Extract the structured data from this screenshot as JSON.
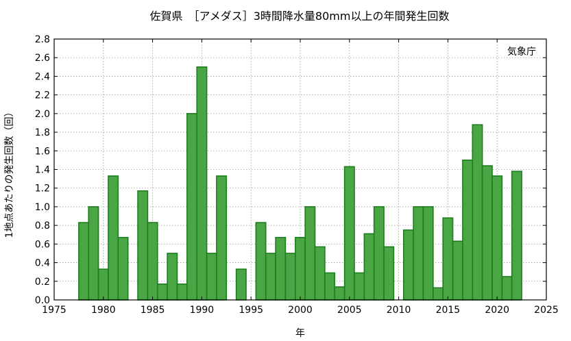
{
  "chart_data": {
    "type": "bar",
    "title": "佐賀県　［アメダス］3時間降水量80mm以上の年間発生回数",
    "xlabel": "年",
    "ylabel": "1地点あたりの発生回数（回）",
    "source": "気象庁",
    "xlim": [
      1975,
      2025
    ],
    "ylim": [
      0.0,
      2.8
    ],
    "xticks": [
      1975,
      1980,
      1985,
      1990,
      1995,
      2000,
      2005,
      2010,
      2015,
      2020,
      2025
    ],
    "yticks": [
      "0.0",
      "0.2",
      "0.4",
      "0.6",
      "0.8",
      "1.0",
      "1.2",
      "1.4",
      "1.6",
      "1.8",
      "2.0",
      "2.2",
      "2.4",
      "2.6",
      "2.8"
    ],
    "grid": true,
    "bar_color": "#4aa544",
    "bar_edge_color": "#1e7d1e",
    "x": [
      1976,
      1977,
      1978,
      1979,
      1980,
      1981,
      1982,
      1983,
      1984,
      1985,
      1986,
      1987,
      1988,
      1989,
      1990,
      1991,
      1992,
      1993,
      1994,
      1995,
      1996,
      1997,
      1998,
      1999,
      2000,
      2001,
      2002,
      2003,
      2004,
      2005,
      2006,
      2007,
      2008,
      2009,
      2010,
      2011,
      2012,
      2013,
      2014,
      2015,
      2016,
      2017,
      2018,
      2019,
      2020,
      2021,
      2022,
      2023
    ],
    "values": [
      0,
      0,
      0.83,
      1.0,
      0.33,
      1.33,
      0.67,
      0,
      1.17,
      0.83,
      0.17,
      0.5,
      0.17,
      2.0,
      2.5,
      0.5,
      1.33,
      0,
      0.33,
      0,
      0.83,
      0.5,
      0.67,
      0.5,
      0.67,
      1.0,
      0.57,
      0.29,
      0.14,
      1.43,
      0.29,
      0.71,
      1.0,
      0.57,
      0,
      0.75,
      1.0,
      1.0,
      0.13,
      0.88,
      0.63,
      1.5,
      1.88,
      1.44,
      1.33,
      0.25,
      1.38,
      0
    ]
  }
}
